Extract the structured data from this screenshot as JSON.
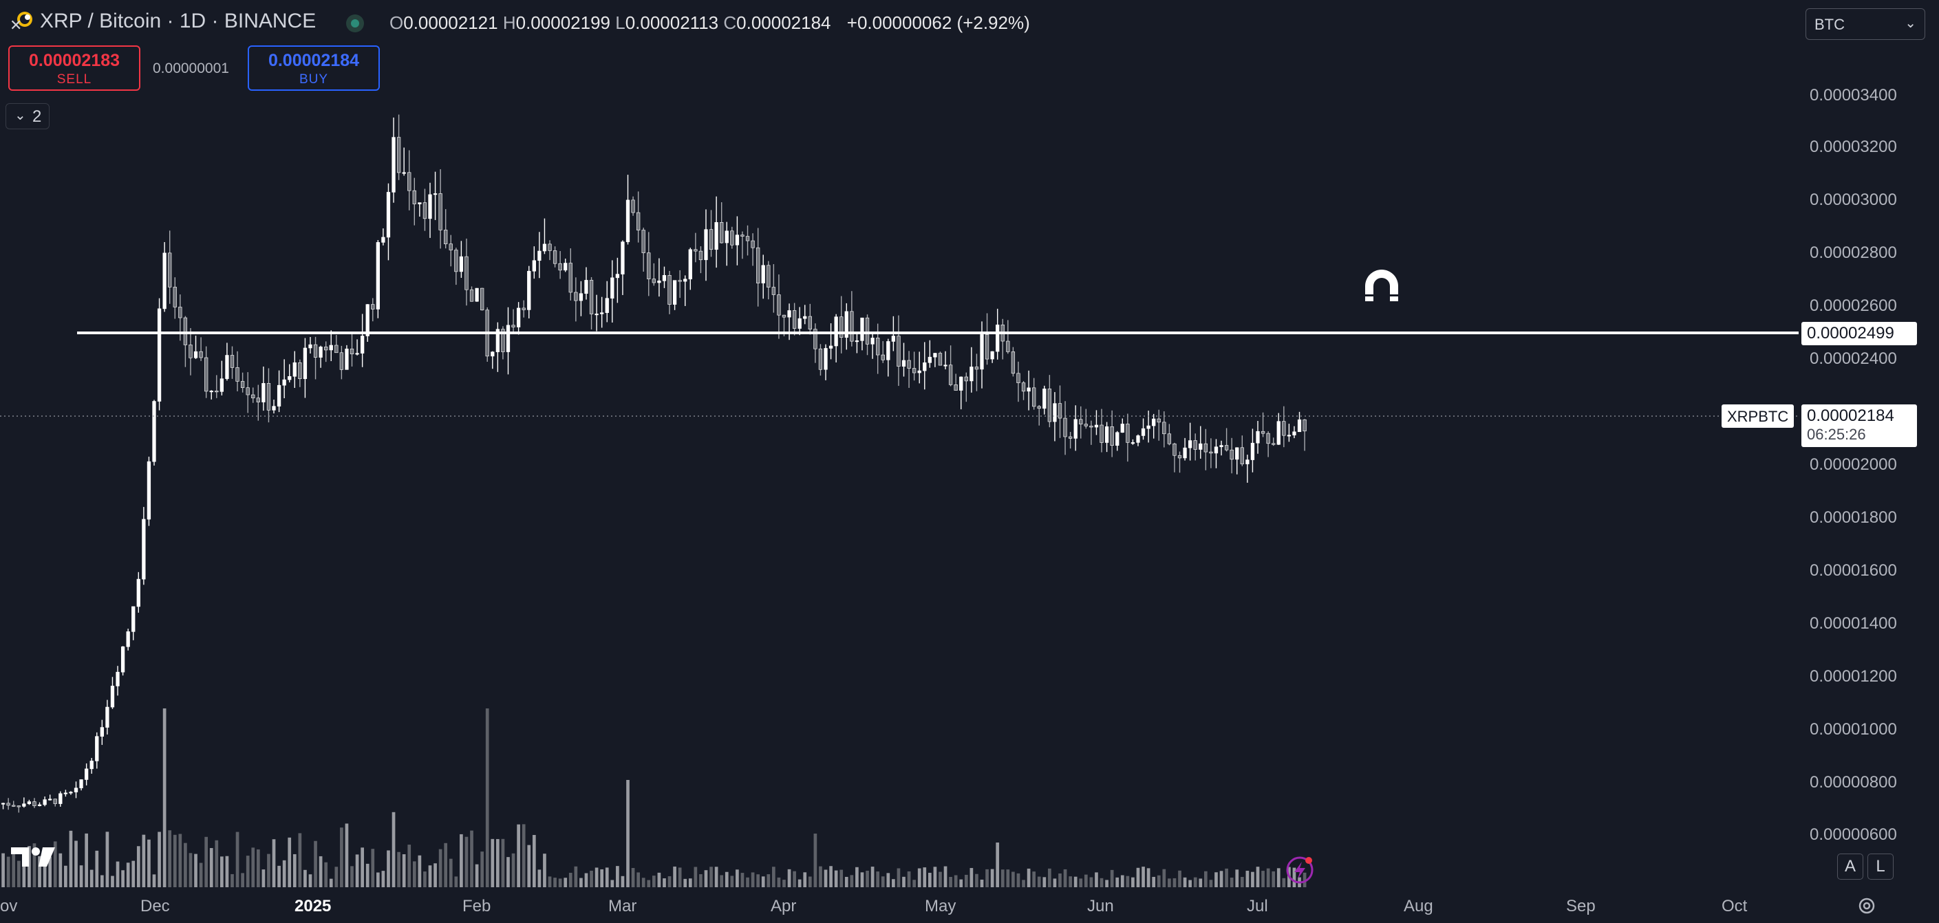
{
  "header": {
    "symbol_title": "XRP / Bitcoin · 1D · BINANCE",
    "ohlc": {
      "o_key": "O",
      "o_val": "0.00002121",
      "h_key": "H",
      "h_val": "0.00002199",
      "l_key": "L",
      "l_val": "0.00002113",
      "c_key": "C",
      "c_val": "0.00002184",
      "change": "+0.00000062 (+2.92%)"
    },
    "close_icon": "close-icon",
    "logo_icon": "exchange-logo-icon"
  },
  "currency_select": {
    "value": "BTC"
  },
  "trade": {
    "sell_price": "0.00002183",
    "sell_label": "SELL",
    "spread": "0.00000001",
    "buy_price": "0.00002184",
    "buy_label": "BUY"
  },
  "indicators_toggle": {
    "count": "2"
  },
  "price_scale": {
    "labels": [
      "0.00003400",
      "0.00003200",
      "0.00003000",
      "0.00002800",
      "0.00002600",
      "0.00002400",
      "0.00002000",
      "0.00001800",
      "0.00001600",
      "0.00001400",
      "0.00001200",
      "0.00001000",
      "0.00000800",
      "0.00000600"
    ]
  },
  "time_scale": {
    "labels": [
      "ov",
      "Dec",
      "2025",
      "Feb",
      "Mar",
      "Apr",
      "May",
      "Jun",
      "Jul",
      "Aug",
      "Sep",
      "Oct"
    ]
  },
  "horizontal_line": {
    "price_label": "0.00002499"
  },
  "last_price": {
    "symbol": "XRPBTC",
    "price": "0.00002184",
    "countdown": "06:25:26"
  },
  "buttons": {
    "auto_label": "A",
    "log_label": "L"
  },
  "colors": {
    "background": "#161a25",
    "candle": "#ffffff",
    "volume": "#8a8d94",
    "sell": "#f23645",
    "buy": "#2962ff"
  },
  "chart_data": {
    "type": "candlestick",
    "interval": "1D",
    "yrange": [
      5.5e-06,
      3.57e-05
    ],
    "ylabel": "",
    "xlabel": "",
    "horizontal_level": 2.499e-05,
    "last_close": 2.184e-05,
    "anchors": [
      [
        "2024-11-01",
        7.2e-06
      ],
      [
        "2024-11-10",
        7.2e-06
      ],
      [
        "2024-11-16",
        7.6e-06
      ],
      [
        "2024-11-20",
        9.5e-06
      ],
      [
        "2024-11-23",
        1.18e-05
      ],
      [
        "2024-11-26",
        1.38e-05
      ],
      [
        "2024-11-28",
        1.6e-05
      ],
      [
        "2024-11-30",
        2e-05
      ],
      [
        "2024-12-02",
        2.58e-05
      ],
      [
        "2024-12-03",
        2.8e-05
      ],
      [
        "2024-12-05",
        2.55e-05
      ],
      [
        "2024-12-08",
        2.42e-05
      ],
      [
        "2024-12-12",
        2.28e-05
      ],
      [
        "2024-12-16",
        2.4e-05
      ],
      [
        "2024-12-20",
        2.28e-05
      ],
      [
        "2024-12-24",
        2.24e-05
      ],
      [
        "2024-12-28",
        2.36e-05
      ],
      [
        "2025-01-03",
        2.46e-05
      ],
      [
        "2025-01-08",
        2.38e-05
      ],
      [
        "2025-01-12",
        2.65e-05
      ],
      [
        "2025-01-16",
        3.18e-05
      ],
      [
        "2025-01-20",
        3.05e-05
      ],
      [
        "2025-01-24",
        2.96e-05
      ],
      [
        "2025-01-28",
        2.75e-05
      ],
      [
        "2025-02-01",
        2.65e-05
      ],
      [
        "2025-02-03",
        2.4e-05
      ],
      [
        "2025-02-07",
        2.52e-05
      ],
      [
        "2025-02-11",
        2.7e-05
      ],
      [
        "2025-02-15",
        2.83e-05
      ],
      [
        "2025-02-20",
        2.68e-05
      ],
      [
        "2025-02-26",
        2.58e-05
      ],
      [
        "2025-03-02",
        2.98e-05
      ],
      [
        "2025-03-05",
        2.78e-05
      ],
      [
        "2025-03-10",
        2.66e-05
      ],
      [
        "2025-03-15",
        2.8e-05
      ],
      [
        "2025-03-19",
        2.9e-05
      ],
      [
        "2025-03-24",
        2.84e-05
      ],
      [
        "2025-03-30",
        2.65e-05
      ],
      [
        "2025-04-05",
        2.53e-05
      ],
      [
        "2025-04-08",
        2.42e-05
      ],
      [
        "2025-04-12",
        2.54e-05
      ],
      [
        "2025-04-18",
        2.48e-05
      ],
      [
        "2025-04-25",
        2.4e-05
      ],
      [
        "2025-05-01",
        2.36e-05
      ],
      [
        "2025-05-06",
        2.3e-05
      ],
      [
        "2025-05-09",
        2.44e-05
      ],
      [
        "2025-05-12",
        2.5e-05
      ],
      [
        "2025-05-15",
        2.32e-05
      ],
      [
        "2025-05-20",
        2.26e-05
      ],
      [
        "2025-05-26",
        2.14e-05
      ],
      [
        "2025-06-01",
        2.1e-05
      ],
      [
        "2025-06-05",
        2.12e-05
      ],
      [
        "2025-06-10",
        2.14e-05
      ],
      [
        "2025-06-15",
        2.07e-05
      ],
      [
        "2025-06-20",
        2.06e-05
      ],
      [
        "2025-06-25",
        2.03e-05
      ],
      [
        "2025-06-29",
        2.06e-05
      ],
      [
        "2025-07-04",
        2.12e-05
      ],
      [
        "2025-07-07",
        2.14e-05
      ],
      [
        "2025-07-09",
        2.18e-05
      ],
      [
        "2025-07-10",
        2.18e-05
      ]
    ],
    "volume_spikes": [
      [
        "2024-12-03",
        1.0
      ],
      [
        "2025-02-03",
        1.0
      ],
      [
        "2025-03-02",
        0.6
      ],
      [
        "2025-01-16",
        0.42
      ],
      [
        "2025-04-07",
        0.3
      ],
      [
        "2025-05-12",
        0.25
      ]
    ]
  }
}
